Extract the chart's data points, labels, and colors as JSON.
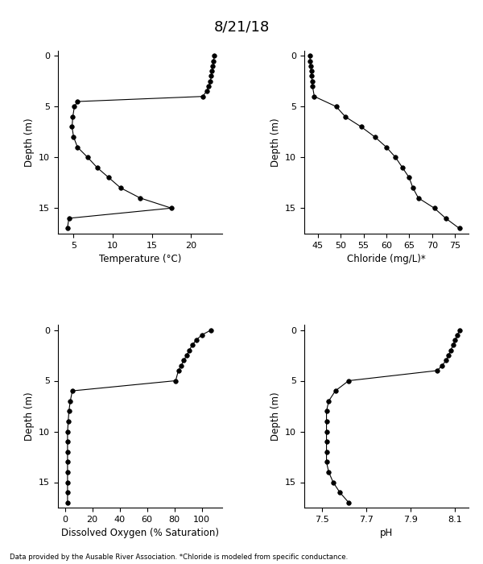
{
  "title": "8/21/18",
  "footnote": "Data provided by the Ausable River Association. *Chloride is modeled from specific conductance.",
  "temp": {
    "depth": [
      0,
      0.5,
      1,
      1.5,
      2,
      2.5,
      3,
      3.5,
      4,
      4.5,
      5,
      6,
      7,
      8,
      9,
      10,
      11,
      12,
      13,
      14,
      15,
      16,
      17
    ],
    "values": [
      23.0,
      22.9,
      22.8,
      22.7,
      22.6,
      22.5,
      22.3,
      22.0,
      21.5,
      5.5,
      5.1,
      4.9,
      4.8,
      5.0,
      5.5,
      6.8,
      8.0,
      9.5,
      11.0,
      13.5,
      17.5,
      4.4,
      4.2
    ],
    "xlabel": "Temperature (°C)",
    "xlim": [
      3,
      24
    ],
    "xticks": [
      5,
      10,
      15,
      20
    ],
    "ylim": [
      17.5,
      -0.5
    ],
    "yticks": [
      0,
      5,
      10,
      15
    ]
  },
  "chloride": {
    "depth": [
      0,
      0.5,
      1,
      1.5,
      2,
      2.5,
      3,
      4,
      5,
      6,
      7,
      8,
      9,
      10,
      11,
      12,
      13,
      14,
      15,
      16,
      17
    ],
    "values": [
      43.2,
      43.3,
      43.4,
      43.5,
      43.6,
      43.7,
      43.8,
      44.2,
      49.0,
      51.0,
      54.5,
      57.5,
      60.0,
      62.0,
      63.5,
      65.0,
      65.8,
      67.0,
      70.5,
      73.0,
      76.0
    ],
    "xlabel": "Chloride (mg/L)*",
    "xlim": [
      42,
      78
    ],
    "xticks": [
      45,
      50,
      55,
      60,
      65,
      70,
      75
    ],
    "ylim": [
      17.5,
      -0.5
    ],
    "yticks": [
      0,
      5,
      10,
      15
    ]
  },
  "do": {
    "depth": [
      0,
      0.5,
      1,
      1.5,
      2,
      2.5,
      3,
      3.5,
      4,
      5,
      6,
      7,
      8,
      9,
      10,
      11,
      12,
      13,
      14,
      15,
      16,
      17
    ],
    "values": [
      107,
      100,
      96,
      93,
      91,
      89,
      87,
      85,
      83,
      81,
      5.5,
      4.0,
      3.0,
      2.5,
      2.0,
      2.0,
      2.0,
      2.0,
      2.0,
      2.0,
      2.0,
      2.0
    ],
    "xlabel": "Dissolved Oxygen (% Saturation)",
    "xlim": [
      -5,
      115
    ],
    "xticks": [
      0,
      20,
      40,
      60,
      80,
      100
    ],
    "ylim": [
      17.5,
      -0.5
    ],
    "yticks": [
      0,
      5,
      10,
      15
    ]
  },
  "ph": {
    "depth": [
      0,
      0.5,
      1,
      1.5,
      2,
      2.5,
      3,
      3.5,
      4,
      5,
      6,
      7,
      8,
      9,
      10,
      11,
      12,
      13,
      14,
      15,
      16,
      17
    ],
    "values": [
      8.12,
      8.11,
      8.1,
      8.09,
      8.08,
      8.07,
      8.06,
      8.04,
      8.02,
      7.62,
      7.56,
      7.53,
      7.52,
      7.52,
      7.52,
      7.52,
      7.52,
      7.52,
      7.53,
      7.55,
      7.58,
      7.62
    ],
    "xlabel": "pH",
    "xlim": [
      7.42,
      8.16
    ],
    "xticks": [
      7.5,
      7.7,
      7.9,
      8.1
    ],
    "ylim": [
      17.5,
      -0.5
    ],
    "yticks": [
      0,
      5,
      10,
      15
    ]
  },
  "marker": "o",
  "markersize": 4,
  "linecolor": "black",
  "markercolor": "black",
  "markerfacecolor": "black"
}
